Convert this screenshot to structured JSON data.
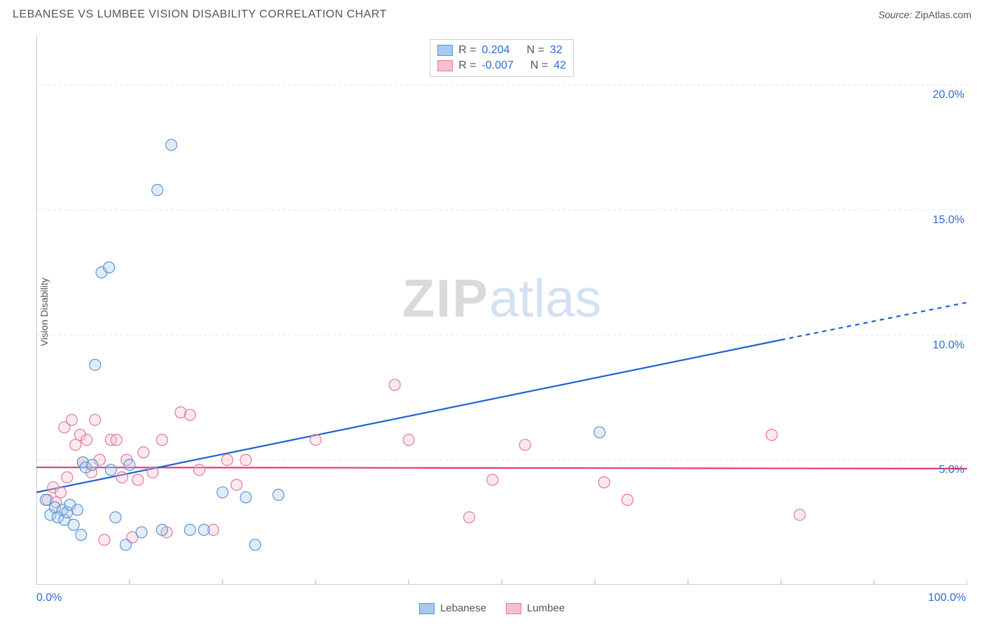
{
  "header": {
    "title": "LEBANESE VS LUMBEE VISION DISABILITY CORRELATION CHART",
    "source_label": "Source:",
    "source_value": "ZipAtlas.com"
  },
  "watermark": {
    "part1": "ZIP",
    "part2": "atlas"
  },
  "yaxis": {
    "label": "Vision Disability"
  },
  "chart": {
    "type": "scatter",
    "background_color": "#ffffff",
    "grid_color": "#e4e4e4",
    "axis_color": "#bfbfbf",
    "tick_label_color": "#2b6cd4",
    "text_color": "#555555",
    "marker_radius": 8,
    "marker_stroke_width": 1.2,
    "fill_opacity": 0.35,
    "trend_line_width": 2.2,
    "xlim": [
      0,
      100
    ],
    "ylim": [
      0,
      22
    ],
    "x_ticks": [
      0,
      10,
      20,
      30,
      40,
      50,
      60,
      70,
      80,
      90,
      100
    ],
    "x_tick_labels": {
      "0": "0.0%",
      "100": "100.0%"
    },
    "y_gridlines": [
      5,
      10,
      15,
      20
    ],
    "y_tick_labels": {
      "5": "5.0%",
      "10": "10.0%",
      "15": "15.0%",
      "20": "20.0%"
    }
  },
  "series": {
    "lebanese": {
      "label": "Lebanese",
      "fill_color": "#a9c8ec",
      "stroke_color": "#5b95d6",
      "trend_color": "#1f62d0",
      "r_value": "0.204",
      "n_value": "32",
      "trend": {
        "x1": 0,
        "y1": 3.7,
        "x2": 80,
        "y2": 9.8,
        "x2_dash": 100,
        "y2_dash": 11.3
      },
      "points": [
        [
          1.0,
          3.4
        ],
        [
          1.5,
          2.8
        ],
        [
          2.0,
          3.1
        ],
        [
          2.3,
          2.7
        ],
        [
          2.8,
          3.0
        ],
        [
          3.0,
          2.6
        ],
        [
          3.3,
          2.9
        ],
        [
          3.6,
          3.2
        ],
        [
          4.0,
          2.4
        ],
        [
          4.4,
          3.0
        ],
        [
          4.8,
          2.0
        ],
        [
          5.0,
          4.9
        ],
        [
          5.3,
          4.7
        ],
        [
          6.0,
          4.8
        ],
        [
          6.3,
          8.8
        ],
        [
          7.0,
          12.5
        ],
        [
          7.8,
          12.7
        ],
        [
          8.0,
          4.6
        ],
        [
          8.5,
          2.7
        ],
        [
          9.6,
          1.6
        ],
        [
          10.0,
          4.8
        ],
        [
          11.3,
          2.1
        ],
        [
          13.0,
          15.8
        ],
        [
          13.5,
          2.2
        ],
        [
          14.5,
          17.6
        ],
        [
          16.5,
          2.2
        ],
        [
          18.0,
          2.2
        ],
        [
          20.0,
          3.7
        ],
        [
          22.5,
          3.5
        ],
        [
          23.5,
          1.6
        ],
        [
          26.0,
          3.6
        ],
        [
          60.5,
          6.1
        ]
      ]
    },
    "lumbee": {
      "label": "Lumbee",
      "fill_color": "#f4c0ce",
      "stroke_color": "#e37a9a",
      "trend_color": "#e73a72",
      "r_value": "-0.007",
      "n_value": "42",
      "trend": {
        "x1": 0,
        "y1": 4.7,
        "x2": 100,
        "y2": 4.65
      },
      "points": [
        [
          1.2,
          3.4
        ],
        [
          1.8,
          3.9
        ],
        [
          2.1,
          3.3
        ],
        [
          2.6,
          3.7
        ],
        [
          3.0,
          6.3
        ],
        [
          3.3,
          4.3
        ],
        [
          3.8,
          6.6
        ],
        [
          4.2,
          5.6
        ],
        [
          4.7,
          6.0
        ],
        [
          5.0,
          4.9
        ],
        [
          5.4,
          5.8
        ],
        [
          5.9,
          4.5
        ],
        [
          6.3,
          6.6
        ],
        [
          6.8,
          5.0
        ],
        [
          7.3,
          1.8
        ],
        [
          8.0,
          5.8
        ],
        [
          8.6,
          5.8
        ],
        [
          9.2,
          4.3
        ],
        [
          9.7,
          5.0
        ],
        [
          10.3,
          1.9
        ],
        [
          10.9,
          4.2
        ],
        [
          11.5,
          5.3
        ],
        [
          12.5,
          4.5
        ],
        [
          13.5,
          5.8
        ],
        [
          14.0,
          2.1
        ],
        [
          15.5,
          6.9
        ],
        [
          16.5,
          6.8
        ],
        [
          17.5,
          4.6
        ],
        [
          19.0,
          2.2
        ],
        [
          20.5,
          5.0
        ],
        [
          21.5,
          4.0
        ],
        [
          22.5,
          5.0
        ],
        [
          30.0,
          5.8
        ],
        [
          38.5,
          8.0
        ],
        [
          40.0,
          5.8
        ],
        [
          46.5,
          2.7
        ],
        [
          49.0,
          4.2
        ],
        [
          52.5,
          5.6
        ],
        [
          61.0,
          4.1
        ],
        [
          63.5,
          3.4
        ],
        [
          79.0,
          6.0
        ],
        [
          82.0,
          2.8
        ]
      ]
    }
  },
  "legend_top": {
    "r_label": "R =",
    "n_label": "N ="
  },
  "legend_bottom_items": [
    "lebanese",
    "lumbee"
  ]
}
